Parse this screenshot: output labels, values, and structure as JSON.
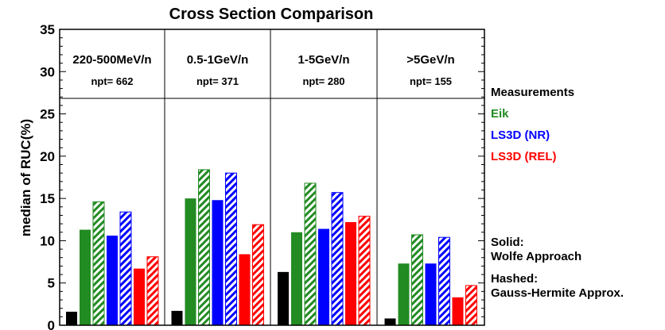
{
  "chart_data": {
    "type": "bar",
    "title": "Cross Section Comparison",
    "ylabel": "median of RUC(%)",
    "xlabel": "",
    "ylim": [
      0,
      35
    ],
    "yticks": [
      0,
      5,
      10,
      15,
      20,
      25,
      30,
      35
    ],
    "grid": false,
    "legend_position": "right",
    "panels": [
      {
        "label": "220-500MeV/n",
        "npt": "npt= 662",
        "values": {
          "measurements": 1.6,
          "eik_solid": 11.3,
          "eik_hashed": 14.6,
          "ls3d_nr_solid": 10.6,
          "ls3d_nr_hashed": 13.4,
          "ls3d_rel_solid": 6.7,
          "ls3d_rel_hashed": 8.1
        }
      },
      {
        "label": "0.5-1GeV/n",
        "npt": "npt= 371",
        "values": {
          "measurements": 1.7,
          "eik_solid": 15.0,
          "eik_hashed": 18.4,
          "ls3d_nr_solid": 14.8,
          "ls3d_nr_hashed": 18.0,
          "ls3d_rel_solid": 8.4,
          "ls3d_rel_hashed": 11.9
        }
      },
      {
        "label": "1-5GeV/n",
        "npt": "npt= 280",
        "values": {
          "measurements": 6.3,
          "eik_solid": 11.0,
          "eik_hashed": 16.8,
          "ls3d_nr_solid": 11.4,
          "ls3d_nr_hashed": 15.7,
          "ls3d_rel_solid": 12.2,
          "ls3d_rel_hashed": 12.9
        }
      },
      {
        "label": ">5GeV/n",
        "npt": "npt= 155",
        "values": {
          "measurements": 0.8,
          "eik_solid": 7.3,
          "eik_hashed": 10.7,
          "ls3d_nr_solid": 7.3,
          "ls3d_nr_hashed": 10.4,
          "ls3d_rel_solid": 3.3,
          "ls3d_rel_hashed": 4.7
        }
      }
    ],
    "series": [
      {
        "key": "measurements",
        "color": "#000000",
        "style": "solid"
      },
      {
        "key": "eik_solid",
        "color": "#228b22",
        "style": "solid"
      },
      {
        "key": "eik_hashed",
        "color": "#228b22",
        "style": "hashed"
      },
      {
        "key": "ls3d_nr_solid",
        "color": "#0000ff",
        "style": "solid"
      },
      {
        "key": "ls3d_nr_hashed",
        "color": "#0000ff",
        "style": "hashed"
      },
      {
        "key": "ls3d_rel_solid",
        "color": "#ff0000",
        "style": "solid"
      },
      {
        "key": "ls3d_rel_hashed",
        "color": "#ff0000",
        "style": "hashed"
      }
    ],
    "legend": {
      "measurements": {
        "text": "Measurements",
        "color": "#000000"
      },
      "eik": {
        "text": "Eik",
        "color": "#228b22"
      },
      "ls3d_nr": {
        "text": "LS3D (NR)",
        "color": "#0000ff"
      },
      "ls3d_rel": {
        "text": "LS3D (REL)",
        "color": "#ff0000"
      },
      "solid_title": "Solid:",
      "solid_desc": "Wolfe Approach",
      "hashed_title": "Hashed:",
      "hashed_desc": "Gauss-Hermite Approx."
    }
  }
}
